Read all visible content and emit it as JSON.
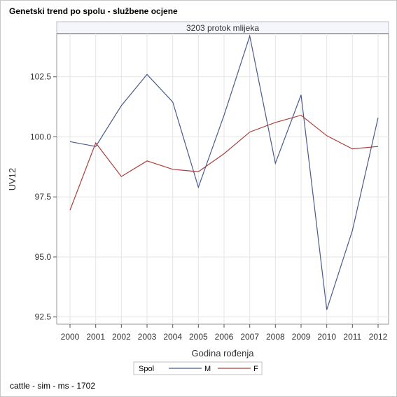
{
  "title": "Genetski trend po spolu - službene ocjene",
  "footnote": "cattle - sim - ms - 1702",
  "chart_data": {
    "type": "line",
    "panel_header": "3203 protok mlijeka",
    "xlabel": "Godina rođenja",
    "ylabel": "UV12",
    "categories": [
      "2000",
      "2001",
      "2002",
      "2003",
      "2004",
      "2005",
      "2006",
      "2007",
      "2008",
      "2009",
      "2010",
      "2011",
      "2012"
    ],
    "yticks": [
      92.5,
      95.0,
      97.5,
      100.0,
      102.5
    ],
    "ytick_labels": [
      "92.5",
      "95.0",
      "97.5",
      "100.0",
      "102.5"
    ],
    "ylim": [
      92.2,
      104.3
    ],
    "grid": true,
    "legend_title": "Spol",
    "legend_position": "bottom",
    "series": [
      {
        "name": "M",
        "color": "#4a5a8c",
        "values": [
          99.8,
          99.6,
          101.3,
          102.6,
          101.45,
          97.9,
          100.9,
          104.2,
          98.9,
          101.75,
          92.8,
          96.1,
          100.8
        ]
      },
      {
        "name": "F",
        "color": "#a8403c",
        "values": [
          96.95,
          99.75,
          98.35,
          99.0,
          98.65,
          98.55,
          99.3,
          100.2,
          100.6,
          100.9,
          100.05,
          99.5,
          99.6
        ]
      }
    ]
  }
}
